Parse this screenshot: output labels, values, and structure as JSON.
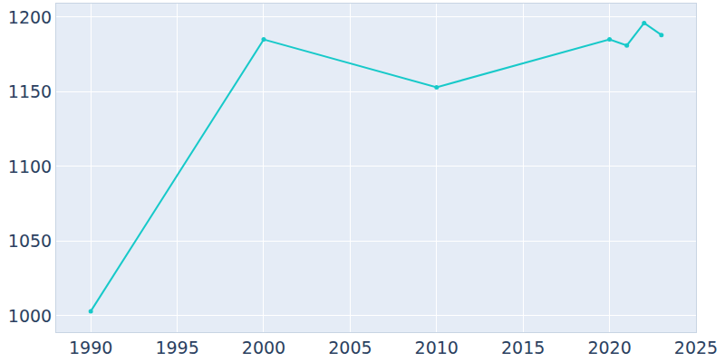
{
  "chart_data": {
    "type": "line",
    "x": [
      1990,
      2000,
      2010,
      2020,
      2021,
      2022,
      2023
    ],
    "values": [
      1003,
      1185,
      1153,
      1185,
      1181,
      1196,
      1188
    ],
    "color": "#17c9c9",
    "marker": "circle",
    "xlim": [
      1988,
      2025
    ],
    "xticks": [
      1990,
      1995,
      2000,
      2005,
      2010,
      2015,
      2020,
      2025
    ],
    "ylim": [
      989,
      1209
    ],
    "yticks": [
      1000,
      1050,
      1100,
      1150,
      1200
    ],
    "grid": true
  }
}
